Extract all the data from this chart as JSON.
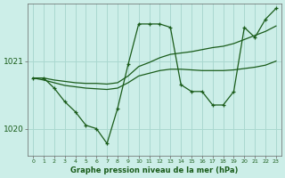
{
  "background_color": "#cceee8",
  "grid_color": "#aad8d0",
  "line_color": "#1a5c1a",
  "xlabel": "Graphe pression niveau de la mer (hPa)",
  "xlim": [
    -0.5,
    23.5
  ],
  "ylim": [
    1019.6,
    1021.85
  ],
  "yticks": [
    1020,
    1021
  ],
  "xticks": [
    0,
    1,
    2,
    3,
    4,
    5,
    6,
    7,
    8,
    9,
    10,
    11,
    12,
    13,
    14,
    15,
    16,
    17,
    18,
    19,
    20,
    21,
    22,
    23
  ],
  "series": {
    "jagged": {
      "x": [
        0,
        1,
        2,
        3,
        4,
        5,
        6,
        7,
        8,
        9,
        10,
        11,
        12,
        13,
        14,
        15,
        16,
        17,
        18,
        19,
        20,
        21,
        22,
        23
      ],
      "y": [
        1020.75,
        1020.75,
        1020.6,
        1020.4,
        1020.25,
        1020.05,
        1020.0,
        1019.78,
        1020.3,
        1020.95,
        1021.55,
        1021.55,
        1021.55,
        1021.5,
        1020.65,
        1020.55,
        1020.55,
        1020.35,
        1020.35,
        1020.55,
        1021.5,
        1021.35,
        1021.62,
        1021.78
      ]
    },
    "smooth_upper": {
      "x": [
        0,
        1,
        2,
        3,
        4,
        5,
        6,
        7,
        8,
        9,
        10,
        11,
        12,
        13,
        14,
        15,
        16,
        17,
        18,
        19,
        20,
        21,
        22,
        23
      ],
      "y": [
        1020.75,
        1020.75,
        1020.72,
        1020.7,
        1020.68,
        1020.67,
        1020.67,
        1020.66,
        1020.68,
        1020.78,
        1020.92,
        1020.98,
        1021.05,
        1021.1,
        1021.12,
        1021.14,
        1021.17,
        1021.2,
        1021.22,
        1021.26,
        1021.32,
        1021.38,
        1021.44,
        1021.52
      ]
    },
    "smooth_lower": {
      "x": [
        0,
        1,
        2,
        3,
        4,
        5,
        6,
        7,
        8,
        9,
        10,
        11,
        12,
        13,
        14,
        15,
        16,
        17,
        18,
        19,
        20,
        21,
        22,
        23
      ],
      "y": [
        1020.75,
        1020.72,
        1020.68,
        1020.64,
        1020.62,
        1020.6,
        1020.59,
        1020.58,
        1020.6,
        1020.68,
        1020.78,
        1020.82,
        1020.86,
        1020.88,
        1020.88,
        1020.87,
        1020.86,
        1020.86,
        1020.86,
        1020.87,
        1020.89,
        1020.91,
        1020.94,
        1021.0
      ]
    }
  }
}
